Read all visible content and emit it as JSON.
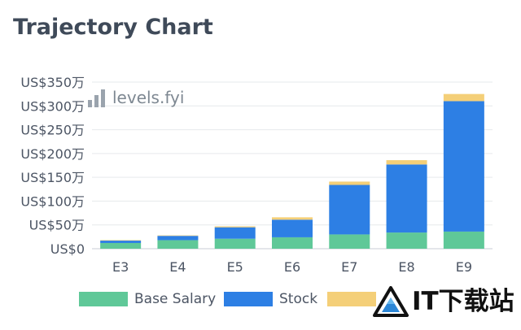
{
  "page": {
    "title": "Trajectory Chart"
  },
  "watermark": {
    "text": "levels.fyi"
  },
  "site_logo": {
    "text": "IT下载站"
  },
  "chart_data": {
    "type": "bar",
    "stacked": true,
    "title": "Trajectory Chart",
    "categories": [
      "E3",
      "E4",
      "E5",
      "E6",
      "E7",
      "E8",
      "E9"
    ],
    "series": [
      {
        "name": "Base Salary",
        "color": "#5fc898",
        "values": [
          12,
          18,
          21,
          24,
          30,
          34,
          36
        ]
      },
      {
        "name": "Stock",
        "color": "#2d7fe4",
        "values": [
          5,
          9,
          24,
          37,
          104,
          143,
          274
        ]
      },
      {
        "name": "",
        "color": "#f4cf78",
        "values": [
          1,
          1,
          2,
          5,
          7,
          9,
          15
        ]
      }
    ],
    "yticks": [
      {
        "value": 0,
        "label": "US$0"
      },
      {
        "value": 50,
        "label": "US$50万"
      },
      {
        "value": 100,
        "label": "US$100万"
      },
      {
        "value": 150,
        "label": "US$150万"
      },
      {
        "value": 200,
        "label": "US$200万"
      },
      {
        "value": 250,
        "label": "US$250万"
      },
      {
        "value": 300,
        "label": "US$300万"
      },
      {
        "value": 350,
        "label": "US$350万"
      }
    ],
    "ylim": [
      0,
      350
    ],
    "grid": true,
    "legend_position": "bottom"
  }
}
